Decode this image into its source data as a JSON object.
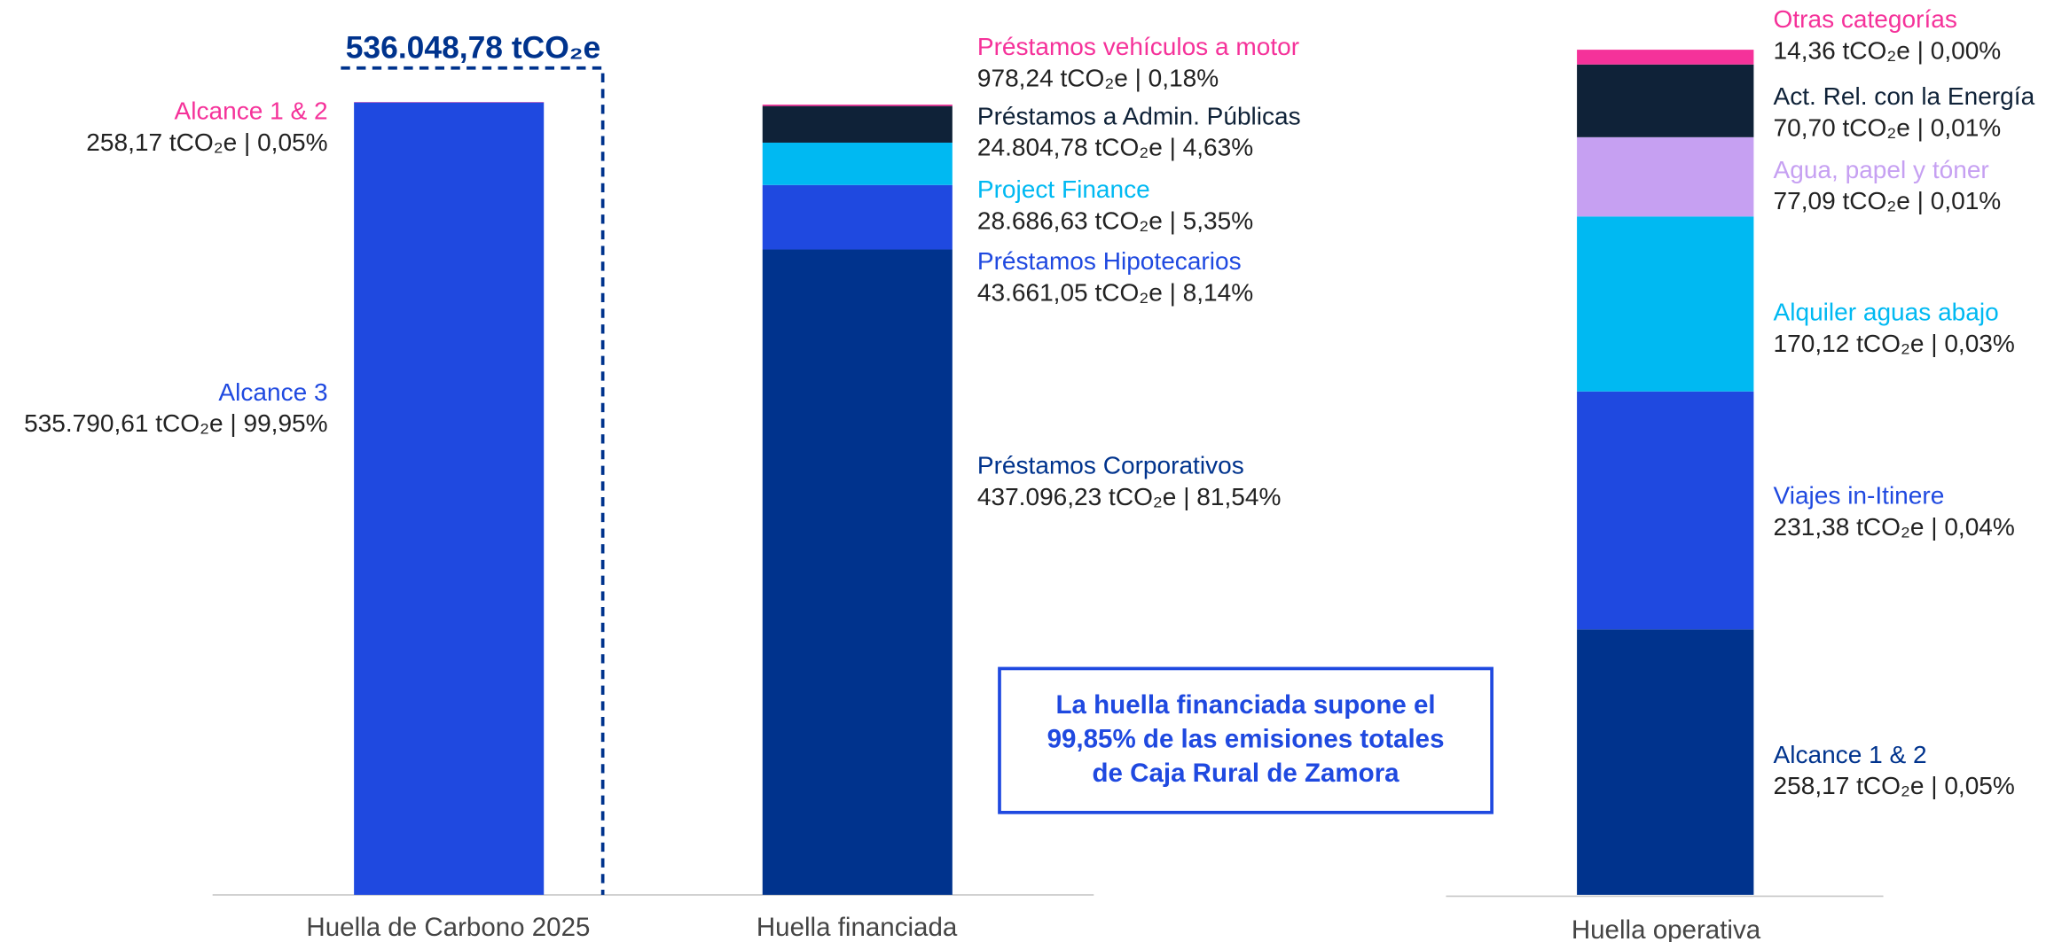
{
  "chart_data": [
    {
      "type": "stacked_bar",
      "categories": [
        "Huella de Carbono 2025"
      ],
      "ylim": [
        0,
        536048.78
      ],
      "annotation": "536.048,78 tCO₂e",
      "series": [
        {
          "name": "Alcance 3",
          "color": "#1f49e0",
          "values": [
            535790.61
          ],
          "value_labels": [
            "535.790,61 tCO₂e | 99,95%"
          ]
        },
        {
          "name": "Alcance 1 & 2",
          "color": "#f5329a",
          "values": [
            258.17
          ],
          "value_labels": [
            "258,17 tCO₂e | 0,05%"
          ]
        }
      ]
    },
    {
      "type": "stacked_bar",
      "categories": [
        "Huella financiada"
      ],
      "ylim": [
        0,
        536048.78
      ],
      "series": [
        {
          "name": "Préstamos Corporativos",
          "color": "#00338d",
          "values": [
            437096.23
          ],
          "value_labels": [
            "437.096,23 tCO₂e | 81,54%"
          ]
        },
        {
          "name": "Préstamos Hipotecarios",
          "color": "#1f49e0",
          "values": [
            43661.05
          ],
          "value_labels": [
            "43.661,05 tCO₂e | 8,14%"
          ]
        },
        {
          "name": "Project Finance",
          "color": "#00b9f2",
          "values": [
            28686.63
          ],
          "value_labels": [
            "28.686,63 tCO₂e | 5,35%"
          ]
        },
        {
          "name": "Préstamos a Admin. Públicas",
          "color": "#0f2238",
          "values": [
            24804.78
          ],
          "value_labels": [
            "24.804,78 tCO₂e | 4,63%"
          ]
        },
        {
          "name": "Préstamos vehículos a motor",
          "color": "#f5329a",
          "values": [
            978.24
          ],
          "value_labels": [
            "978,24 tCO₂e | 0,18%"
          ]
        }
      ]
    },
    {
      "type": "stacked_bar",
      "categories": [
        "Huella operativa"
      ],
      "ylim": [
        0,
        821.82
      ],
      "series": [
        {
          "name": "Alcance 1 & 2",
          "color": "#00338d",
          "values": [
            258.17
          ],
          "value_labels": [
            "258,17 tCO₂e | 0,05%"
          ]
        },
        {
          "name": "Viajes in-Itinere",
          "color": "#1f49e0",
          "values": [
            231.38
          ],
          "value_labels": [
            "231,38 tCO₂e | 0,04%"
          ]
        },
        {
          "name": "Alquiler aguas abajo",
          "color": "#00b9f2",
          "values": [
            170.12
          ],
          "value_labels": [
            "170,12 tCO₂e | 0,03%"
          ]
        },
        {
          "name": "Agua, papel y tóner",
          "color": "#c6a0f2",
          "values": [
            77.09
          ],
          "value_labels": [
            "77,09 tCO₂e | 0,01%"
          ]
        },
        {
          "name": "Act. Rel. con la Energía",
          "color": "#0f2238",
          "values": [
            70.7
          ],
          "value_labels": [
            "70,70 tCO₂e | 0,01%"
          ]
        },
        {
          "name": "Otras categorías",
          "color": "#f5329a",
          "values": [
            14.36
          ],
          "value_labels": [
            "14,36 tCO₂e | 0,00%"
          ]
        }
      ]
    }
  ],
  "note_box": [
    "La huella financiada supone el",
    "99,85% de las emisiones totales",
    "de Caja Rural de Zamora"
  ]
}
